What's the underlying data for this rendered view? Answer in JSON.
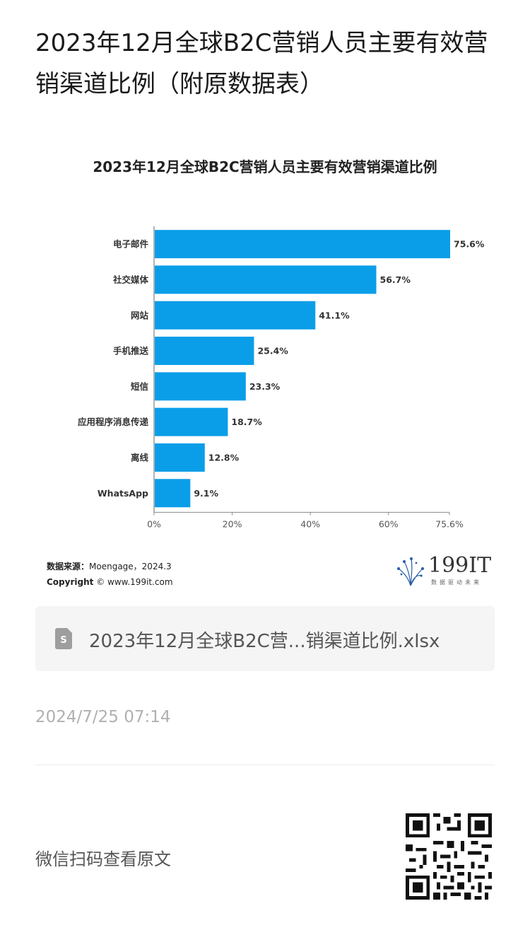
{
  "article": {
    "title": "2023年12月全球B2C营销人员主要有效营销渠道比例（附原数据表）"
  },
  "chart_data": {
    "type": "bar",
    "orientation": "horizontal",
    "title": "2023年12月全球B2C营销人员主要有效营销渠道比例",
    "categories": [
      "电子邮件",
      "社交媒体",
      "网站",
      "手机推送",
      "短信",
      "应用程序消息传递",
      "离线",
      "WhatsApp"
    ],
    "values": [
      75.6,
      56.7,
      41.1,
      25.4,
      23.3,
      18.7,
      12.8,
      9.1
    ],
    "data_labels": [
      "75.6%",
      "56.7%",
      "41.1%",
      "25.4%",
      "23.3%",
      "18.7%",
      "12.8%",
      "9.1%"
    ],
    "x_ticks": [
      0,
      20,
      40,
      60,
      75.6
    ],
    "x_tick_labels": [
      "0%",
      "20%",
      "40%",
      "60%",
      "75.6%"
    ],
    "xlim": [
      0,
      75.6
    ],
    "bar_color": "#0a9ee8",
    "grid": false,
    "legend": "none"
  },
  "source": {
    "label": "数据来源：",
    "value": "Moengage，2024.3",
    "copyright_label": "Copyright",
    "copyright_value": "© www.199it.com"
  },
  "brand": {
    "name": "199IT",
    "tagline": "数据驱动未来",
    "logo_icon": "dandelion-logo-icon"
  },
  "attachment": {
    "icon": "spreadsheet-file-icon",
    "filename": "2023年12月全球B2C营...销渠道比例.xlsx"
  },
  "meta": {
    "timestamp": "2024/7/25 07:14"
  },
  "qr": {
    "caption": "微信扫码查看原文",
    "icon": "qr-code-icon"
  }
}
